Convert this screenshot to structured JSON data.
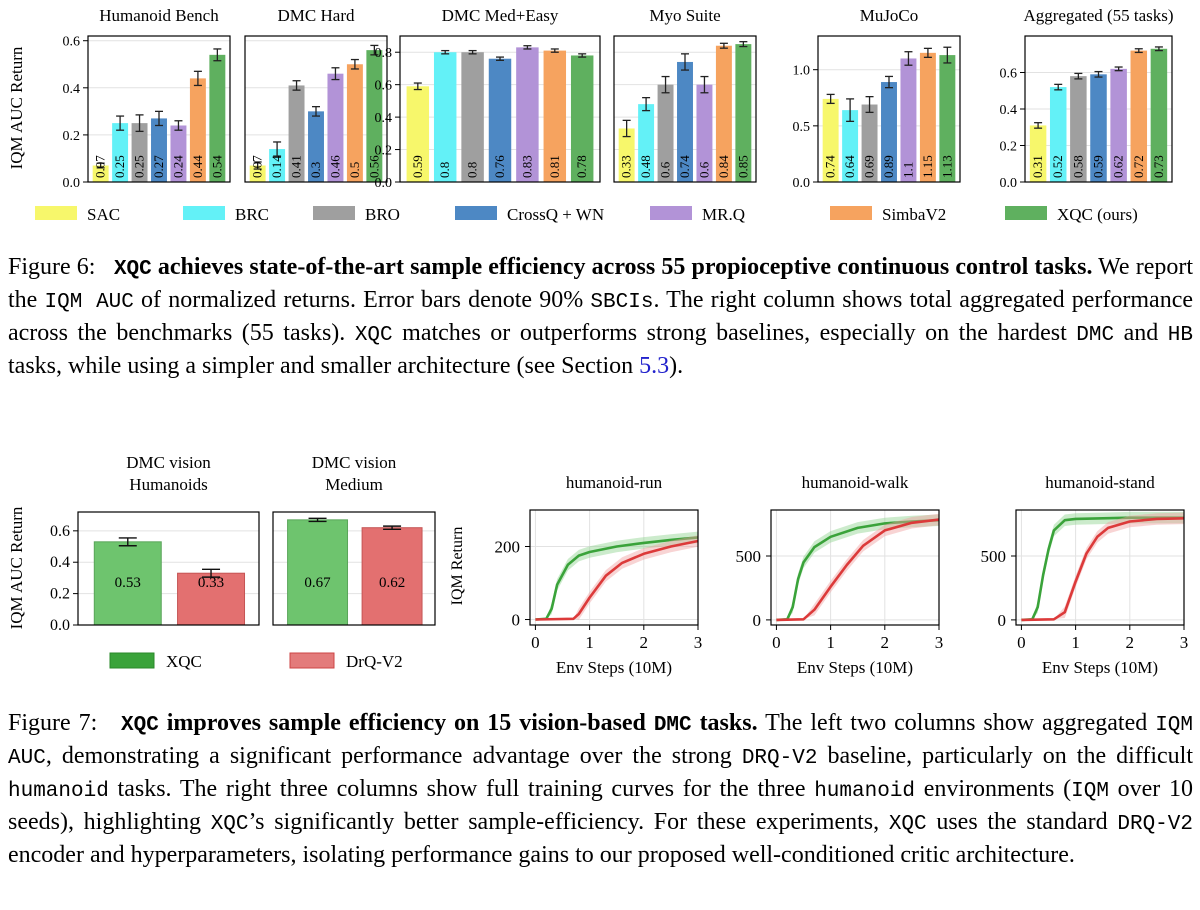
{
  "fig6": {
    "ylabel": "IQM AUC Return",
    "legend": [
      {
        "name": "SAC",
        "color": "#f7f76b"
      },
      {
        "name": "BRC",
        "color": "#63f1f7"
      },
      {
        "name": "BRO",
        "color": "#9f9f9f"
      },
      {
        "name": "CrossQ + WN",
        "color": "#4d88c4"
      },
      {
        "name": "MR.Q",
        "color": "#b293d7"
      },
      {
        "name": "SimbaV2",
        "color": "#f6a35f"
      },
      {
        "name": "XQC (ours)",
        "color": "#5fb05f"
      }
    ],
    "caption": {
      "prefix": "Figure 6:",
      "bold_mono": "XQC",
      "bold_text": " achieves state-of-the-art sample efficiency across 55 propioceptive continuous control tasks.",
      "t1": " We report the ",
      "m1": "IQM AUC",
      "t2": " of normalized returns. Error bars denote 90% ",
      "m2": "SBCIs",
      "t3": ". The right column shows total aggregated performance across the benchmarks (55 tasks). ",
      "m3": "XQC",
      "t4": " matches or outperforms strong baselines, especially on the hardest ",
      "m4": "DMC",
      "t5": " and ",
      "m5": "HB",
      "t6": " tasks, while using a simpler and smaller architecture (see Section ",
      "link": "5.3",
      "t7": ")."
    }
  },
  "fig7": {
    "bar_ylabel": "IQM AUC Return",
    "curve_ylabel": "IQM Return",
    "curve_xlabel": "Env Steps (10M)",
    "legend": [
      {
        "name": "XQC",
        "color": "#3aa33a"
      },
      {
        "name": "DrQ-V2",
        "color": "#dc5a5a"
      }
    ],
    "caption": {
      "prefix": "Figure 7:",
      "bold_mono": "XQC",
      "bold_text1": " improves sample efficiency on 15 vision-based ",
      "bold_mono2": "DMC",
      "bold_text2": " tasks.",
      "t1": " The left two columns show aggregated ",
      "m1": "IQM AUC",
      "t2": ", demonstrating a significant performance advantage over the strong ",
      "m2": "DRQ-V2",
      "t3": " baseline, particularly on the difficult ",
      "m3": "humanoid",
      "t4": " tasks. The right three columns show full training curves for the three ",
      "m4": "humanoid",
      "t5": " environments (",
      "m5": "IQM",
      "t6": " over 10 seeds), highlighting ",
      "m6": "XQC",
      "t7": "’s significantly better sample-efficiency. For these experiments, ",
      "m7": "XQC",
      "t8": " uses the standard ",
      "m8": "DRQ-V2",
      "t9": " encoder and hyperparameters, isolating performance gains to our proposed well-conditioned critic architecture."
    }
  },
  "chart_data": [
    {
      "type": "bar",
      "title": "Humanoid Bench",
      "ylabel": "IQM AUC Return",
      "ylim": [
        0,
        0.62
      ],
      "yticks": [
        "0.0",
        "0.2",
        "0.4",
        "0.6"
      ],
      "categories": [
        "SAC",
        "BRC",
        "BRO",
        "CrossQ + WN",
        "MR.Q",
        "SimbaV2",
        "XQC (ours)"
      ],
      "values": [
        0.07,
        0.25,
        0.25,
        0.27,
        0.24,
        0.44,
        0.54
      ],
      "labels": [
        "0.07",
        "0.25",
        "0.25",
        "0.27",
        "0.24",
        "0.44",
        "0.54"
      ],
      "errors": [
        0.01,
        0.03,
        0.035,
        0.03,
        0.02,
        0.03,
        0.025
      ]
    },
    {
      "type": "bar",
      "title": "DMC Hard",
      "ylabel": "",
      "ylim": [
        0,
        0.62
      ],
      "yticks": [],
      "categories": [
        "SAC",
        "BRC",
        "BRO",
        "CrossQ + WN",
        "MR.Q",
        "SimbaV2",
        "XQC (ours)"
      ],
      "values": [
        0.07,
        0.14,
        0.41,
        0.3,
        0.46,
        0.5,
        0.56
      ],
      "labels": [
        "0.07",
        "0.14",
        "0.41",
        "0.3",
        "0.46",
        "0.5",
        "0.56"
      ],
      "errors": [
        0.015,
        0.03,
        0.02,
        0.02,
        0.025,
        0.02,
        0.02
      ]
    },
    {
      "type": "bar",
      "title": "DMC Med+Easy",
      "ylabel": "",
      "ylim": [
        0,
        0.9
      ],
      "yticks": [
        "0.0",
        "0.2",
        "0.4",
        "0.6",
        "0.8"
      ],
      "categories": [
        "SAC",
        "BRC",
        "BRO",
        "CrossQ + WN",
        "MR.Q",
        "SimbaV2",
        "XQC (ours)"
      ],
      "values": [
        0.59,
        0.8,
        0.8,
        0.76,
        0.83,
        0.81,
        0.78
      ],
      "labels": [
        "0.59",
        "0.8",
        "0.8",
        "0.76",
        "0.83",
        "0.81",
        "0.78"
      ],
      "errors": [
        0.02,
        0.01,
        0.01,
        0.01,
        0.01,
        0.01,
        0.01
      ]
    },
    {
      "type": "bar",
      "title": "Myo Suite",
      "ylabel": "",
      "ylim": [
        0,
        0.9
      ],
      "yticks": [],
      "categories": [
        "SAC",
        "BRC",
        "BRO",
        "CrossQ + WN",
        "MR.Q",
        "SimbaV2",
        "XQC (ours)"
      ],
      "values": [
        0.33,
        0.48,
        0.6,
        0.74,
        0.6,
        0.84,
        0.85
      ],
      "labels": [
        "0.33",
        "0.48",
        "0.6",
        "0.74",
        "0.6",
        "0.84",
        "0.85"
      ],
      "errors": [
        0.05,
        0.04,
        0.05,
        0.05,
        0.05,
        0.015,
        0.015
      ]
    },
    {
      "type": "bar",
      "title": "MuJoCo",
      "ylabel": "",
      "ylim": [
        0,
        1.3
      ],
      "yticks": [
        "0.0",
        "0.5",
        "1.0"
      ],
      "categories": [
        "SAC",
        "BRC",
        "BRO",
        "CrossQ + WN",
        "MR.Q",
        "SimbaV2",
        "XQC (ours)"
      ],
      "values": [
        0.74,
        0.64,
        0.69,
        0.89,
        1.1,
        1.15,
        1.13
      ],
      "labels": [
        "0.74",
        "0.64",
        "0.69",
        "0.89",
        "1.1",
        "1.15",
        "1.13"
      ],
      "errors": [
        0.04,
        0.1,
        0.07,
        0.05,
        0.06,
        0.04,
        0.07
      ]
    },
    {
      "type": "bar",
      "title": "Aggregated (55 tasks)",
      "ylabel": "",
      "ylim": [
        0,
        0.8
      ],
      "yticks": [
        "0.0",
        "0.2",
        "0.4",
        "0.6"
      ],
      "categories": [
        "SAC",
        "BRC",
        "BRO",
        "CrossQ + WN",
        "MR.Q",
        "SimbaV2",
        "XQC (ours)"
      ],
      "values": [
        0.31,
        0.52,
        0.58,
        0.59,
        0.62,
        0.72,
        0.73
      ],
      "labels": [
        "0.31",
        "0.52",
        "0.58",
        "0.59",
        "0.62",
        "0.72",
        "0.73"
      ],
      "errors": [
        0.015,
        0.015,
        0.015,
        0.015,
        0.01,
        0.01,
        0.01
      ]
    },
    {
      "type": "bar",
      "title": "DMC vision Humanoids",
      "ylabel": "IQM AUC Return",
      "ylim": [
        0,
        0.72
      ],
      "yticks": [
        "0.0",
        "0.2",
        "0.4",
        "0.6"
      ],
      "categories": [
        "XQC",
        "DrQ-V2"
      ],
      "values": [
        0.53,
        0.33
      ],
      "labels": [
        "0.53",
        "0.33"
      ],
      "errors": [
        0.025,
        0.025
      ]
    },
    {
      "type": "bar",
      "title": "DMC vision Medium",
      "ylabel": "",
      "ylim": [
        0,
        0.72
      ],
      "yticks": [],
      "categories": [
        "XQC",
        "DrQ-V2"
      ],
      "values": [
        0.67,
        0.62
      ],
      "labels": [
        "0.67",
        "0.62"
      ],
      "errors": [
        0.01,
        0.01
      ]
    },
    {
      "type": "line",
      "title": "humanoid-run",
      "xlabel": "Env Steps (10M)",
      "ylabel": "IQM Return",
      "xlim": [
        -0.1,
        3
      ],
      "ylim": [
        -15,
        300
      ],
      "xticks": [
        "0",
        "1",
        "2",
        "3"
      ],
      "yticks": [
        "0",
        "200"
      ],
      "series": [
        {
          "name": "XQC",
          "x": [
            0,
            0.2,
            0.3,
            0.4,
            0.6,
            0.8,
            1,
            1.5,
            2,
            2.5,
            3
          ],
          "y": [
            0,
            2,
            30,
            95,
            150,
            175,
            185,
            200,
            210,
            218,
            225
          ]
        },
        {
          "name": "DrQ-V2",
          "x": [
            0,
            0.7,
            0.8,
            1,
            1.3,
            1.6,
            2,
            2.5,
            3
          ],
          "y": [
            0,
            2,
            15,
            60,
            120,
            155,
            180,
            200,
            215
          ]
        }
      ]
    },
    {
      "type": "line",
      "title": "humanoid-walk",
      "xlabel": "Env Steps (10M)",
      "ylabel": "",
      "xlim": [
        -0.1,
        3
      ],
      "ylim": [
        -40,
        860
      ],
      "xticks": [
        "0",
        "1",
        "2",
        "3"
      ],
      "yticks": [
        "0",
        "500"
      ],
      "series": [
        {
          "name": "XQC",
          "x": [
            0,
            0.2,
            0.3,
            0.4,
            0.5,
            0.7,
            1,
            1.5,
            2,
            2.5,
            3
          ],
          "y": [
            0,
            5,
            100,
            320,
            450,
            570,
            650,
            720,
            755,
            770,
            780
          ]
        },
        {
          "name": "DrQ-V2",
          "x": [
            0,
            0.5,
            0.7,
            1,
            1.3,
            1.6,
            2,
            2.5,
            3
          ],
          "y": [
            0,
            5,
            80,
            260,
            430,
            580,
            700,
            760,
            785
          ]
        }
      ]
    },
    {
      "type": "line",
      "title": "humanoid-stand",
      "xlabel": "Env Steps (10M)",
      "ylabel": "",
      "xlim": [
        -0.1,
        3
      ],
      "ylim": [
        -40,
        860
      ],
      "xticks": [
        "0",
        "1",
        "2",
        "3"
      ],
      "yticks": [
        "0",
        "500"
      ],
      "series": [
        {
          "name": "XQC",
          "x": [
            0,
            0.2,
            0.3,
            0.4,
            0.5,
            0.6,
            0.8,
            1,
            1.5,
            2,
            2.5,
            3
          ],
          "y": [
            0,
            5,
            100,
            350,
            550,
            700,
            780,
            790,
            795,
            800,
            800,
            800
          ]
        },
        {
          "name": "DrQ-V2",
          "x": [
            0,
            0.6,
            0.8,
            1,
            1.2,
            1.4,
            1.6,
            2,
            2.5,
            3
          ],
          "y": [
            0,
            5,
            60,
            300,
            520,
            650,
            720,
            770,
            790,
            795
          ]
        }
      ]
    }
  ]
}
